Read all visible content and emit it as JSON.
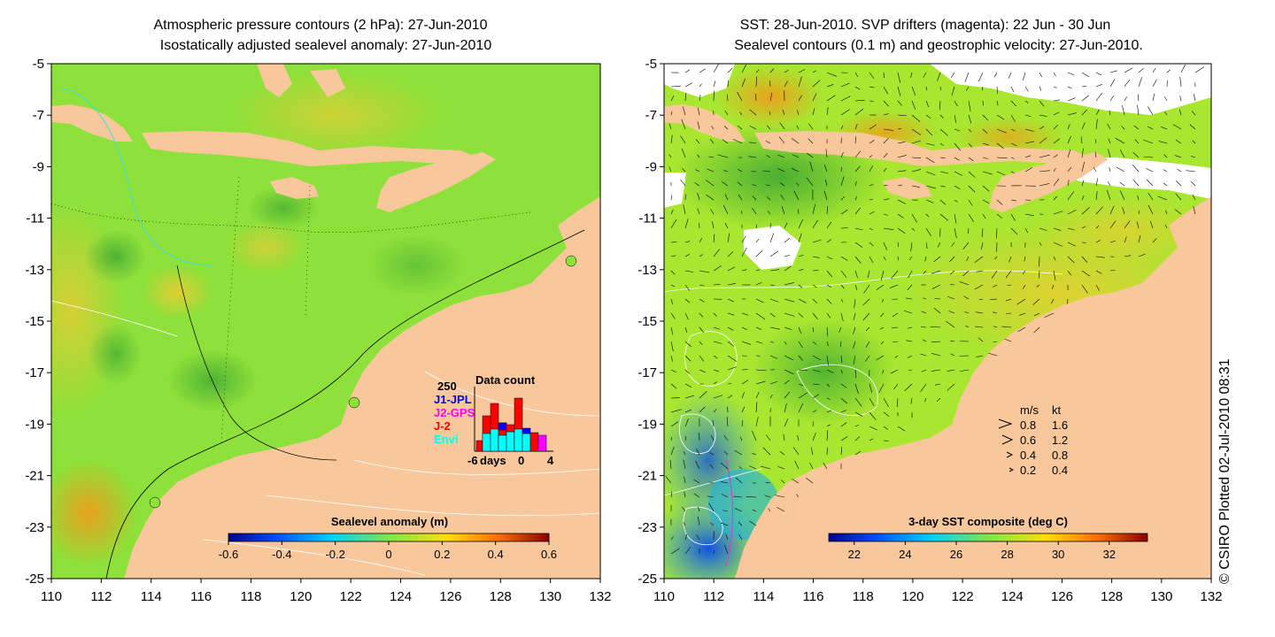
{
  "left_panel": {
    "title_line1": "Atmospheric pressure contours (2 hPa): 27-Jun-2010",
    "title_line2": "Isostatically adjusted sealevel anomaly: 27-Jun-2010",
    "colorbar_label": "Sealevel anomaly (m)",
    "colorbar_ticks": [
      "-0.6",
      "-0.4",
      "-0.2",
      "0",
      "0.2",
      "0.4",
      "0.6"
    ],
    "inset": {
      "title": "Data count",
      "y_max_label": "250",
      "legend": [
        {
          "label": "J1-JPL",
          "color": "#0000ff"
        },
        {
          "label": "J2-GPS",
          "color": "#ff00ff"
        },
        {
          "label": "J-2",
          "color": "#ff0000"
        },
        {
          "label": "Envi",
          "color": "#00ffff"
        }
      ],
      "x_ticks": [
        "-6",
        "0",
        "4"
      ],
      "x_label": "days"
    }
  },
  "right_panel": {
    "title_line1": "SST: 28-Jun-2010. SVP drifters (magenta): 22 Jun - 30 Jun",
    "title_line2": "Sealevel contours (0.1 m) and geostrophic velocity: 27-Jun-2010.",
    "colorbar_label": "3-day SST composite (deg C)",
    "colorbar_ticks": [
      "22",
      "24",
      "26",
      "28",
      "30",
      "32"
    ],
    "speed_legend": {
      "header_ms": "m/s",
      "header_kt": "kt",
      "rows": [
        {
          "ms": "0.8",
          "kt": "1.6"
        },
        {
          "ms": "0.6",
          "kt": "1.2"
        },
        {
          "ms": "0.4",
          "kt": "0.8"
        },
        {
          "ms": "0.2",
          "kt": "0.4"
        }
      ]
    }
  },
  "axes": {
    "y_ticks": [
      "-5",
      "-7",
      "-9",
      "-11",
      "-13",
      "-15",
      "-17",
      "-19",
      "-21",
      "-23",
      "-25"
    ],
    "x_ticks": [
      "110",
      "112",
      "114",
      "116",
      "118",
      "120",
      "122",
      "124",
      "126",
      "128",
      "130",
      "132"
    ]
  },
  "credit": "© CSIRO Plotted 02-Jul-2010 08:31",
  "colors": {
    "land": "#f8c89c",
    "ocean_left": "#8ee03a",
    "ocean_right": "#a8e630"
  }
}
